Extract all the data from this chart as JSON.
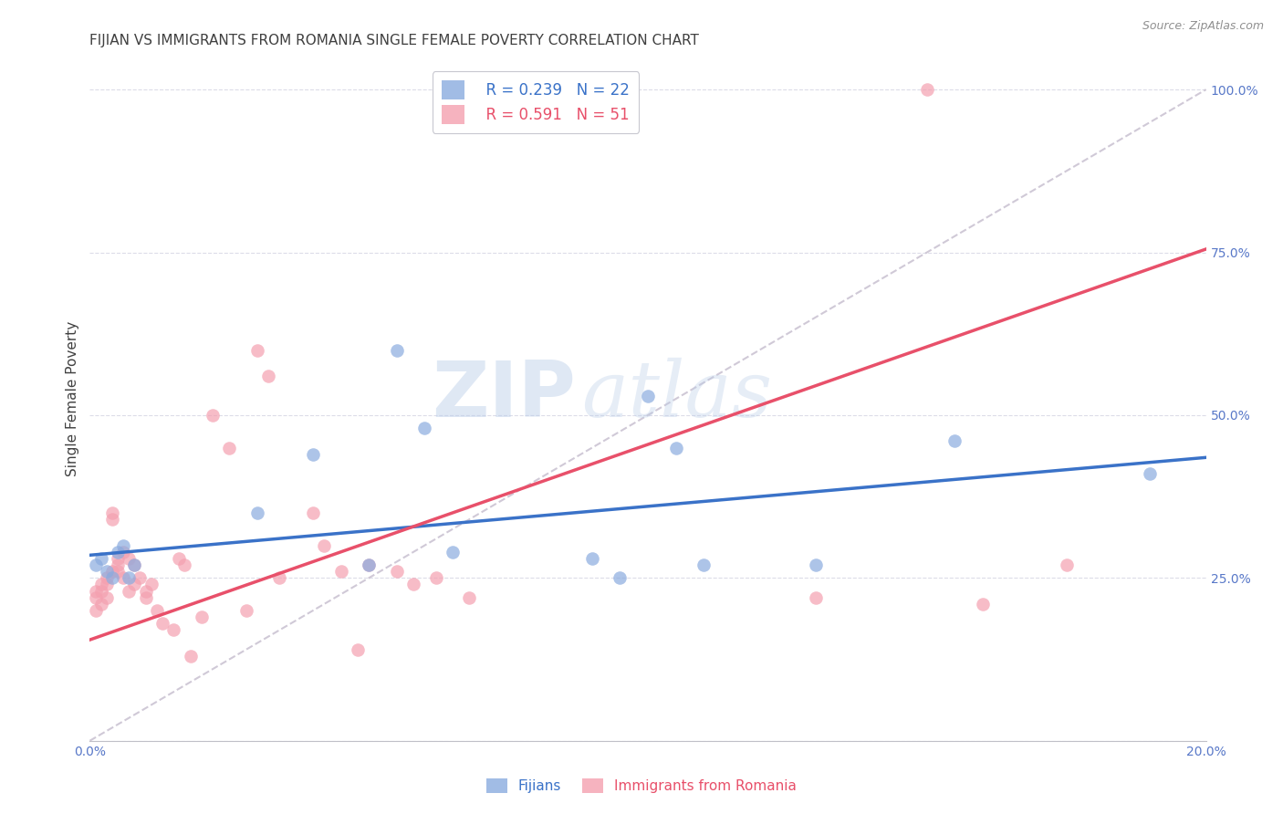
{
  "title": "FIJIAN VS IMMIGRANTS FROM ROMANIA SINGLE FEMALE POVERTY CORRELATION CHART",
  "source": "Source: ZipAtlas.com",
  "ylabel_label": "Single Female Poverty",
  "xlim": [
    0.0,
    0.2
  ],
  "ylim": [
    0.0,
    1.05
  ],
  "xtick_vals": [
    0.0,
    0.05,
    0.1,
    0.15,
    0.2
  ],
  "xtick_labels": [
    "0.0%",
    "",
    "",
    "",
    "20.0%"
  ],
  "ytick_vals": [
    0.0,
    0.25,
    0.5,
    0.75,
    1.0
  ],
  "ytick_labels": [
    "",
    "25.0%",
    "50.0%",
    "75.0%",
    "100.0%"
  ],
  "fijian_color": "#8AABDF",
  "romania_color": "#F4A0B0",
  "fijian_line_color": "#3A72C8",
  "romania_line_color": "#E8506A",
  "diagonal_color": "#C8C0D0",
  "legend_R_fijian": "R = 0.239",
  "legend_N_fijian": "N = 22",
  "legend_R_romania": "R = 0.591",
  "legend_N_romania": "N = 51",
  "fijian_x": [
    0.001,
    0.002,
    0.003,
    0.004,
    0.005,
    0.006,
    0.007,
    0.008,
    0.03,
    0.04,
    0.05,
    0.055,
    0.06,
    0.065,
    0.09,
    0.095,
    0.1,
    0.105,
    0.11,
    0.13,
    0.155,
    0.19
  ],
  "fijian_y": [
    0.27,
    0.28,
    0.26,
    0.25,
    0.29,
    0.3,
    0.25,
    0.27,
    0.35,
    0.44,
    0.27,
    0.6,
    0.48,
    0.29,
    0.28,
    0.25,
    0.53,
    0.45,
    0.27,
    0.27,
    0.46,
    0.41
  ],
  "romania_x": [
    0.001,
    0.001,
    0.001,
    0.002,
    0.002,
    0.002,
    0.003,
    0.003,
    0.003,
    0.004,
    0.004,
    0.004,
    0.005,
    0.005,
    0.005,
    0.006,
    0.006,
    0.007,
    0.007,
    0.008,
    0.008,
    0.009,
    0.01,
    0.01,
    0.011,
    0.012,
    0.013,
    0.015,
    0.016,
    0.017,
    0.018,
    0.02,
    0.022,
    0.025,
    0.028,
    0.03,
    0.032,
    0.034,
    0.04,
    0.042,
    0.045,
    0.048,
    0.05,
    0.055,
    0.058,
    0.062,
    0.068,
    0.13,
    0.15,
    0.16,
    0.175
  ],
  "romania_y": [
    0.22,
    0.23,
    0.2,
    0.24,
    0.23,
    0.21,
    0.25,
    0.24,
    0.22,
    0.35,
    0.34,
    0.26,
    0.27,
    0.28,
    0.26,
    0.29,
    0.25,
    0.28,
    0.23,
    0.27,
    0.24,
    0.25,
    0.23,
    0.22,
    0.24,
    0.2,
    0.18,
    0.17,
    0.28,
    0.27,
    0.13,
    0.19,
    0.5,
    0.45,
    0.2,
    0.6,
    0.56,
    0.25,
    0.35,
    0.3,
    0.26,
    0.14,
    0.27,
    0.26,
    0.24,
    0.25,
    0.22,
    0.22,
    1.0,
    0.21,
    0.27
  ],
  "fijian_line_x0": 0.0,
  "fijian_line_y0": 0.285,
  "fijian_line_x1": 0.2,
  "fijian_line_y1": 0.435,
  "romania_line_x0": 0.0,
  "romania_line_y0": 0.155,
  "romania_line_x1": 0.2,
  "romania_line_y1": 0.755,
  "background_color": "#FFFFFF",
  "watermark_zip": "ZIP",
  "watermark_atlas": "atlas",
  "title_color": "#404040",
  "axis_tick_color": "#5878C8",
  "grid_color": "#DCDCE8",
  "title_fontsize": 11,
  "label_fontsize": 11,
  "tick_fontsize": 10,
  "legend_fontsize": 12,
  "source_fontsize": 9
}
